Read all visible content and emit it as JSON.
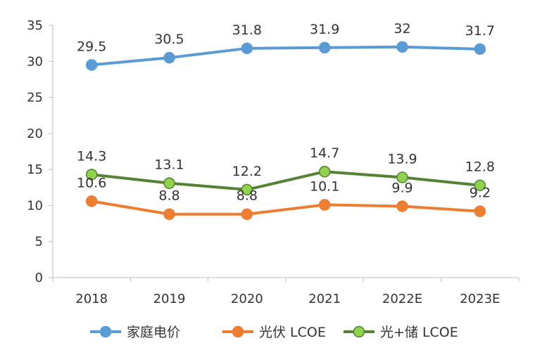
{
  "chart_data": {
    "type": "line",
    "categories": [
      "2018",
      "2019",
      "2020",
      "2021",
      "2022E",
      "2023E"
    ],
    "ylim": [
      0,
      35
    ],
    "yticks": [
      0,
      5,
      10,
      15,
      20,
      25,
      30,
      35
    ],
    "grid": false,
    "legend_position": "bottom",
    "series": [
      {
        "name": "家庭电价",
        "color": "#5b9bd5",
        "marker_fill": "#5b9bd5",
        "values": [
          29.5,
          30.5,
          31.8,
          31.9,
          32,
          31.7
        ],
        "labels": [
          "29.5",
          "30.5",
          "31.8",
          "31.9",
          "32",
          "31.7"
        ]
      },
      {
        "name": "光伏 LCOE",
        "color": "#ed7d31",
        "marker_fill": "#ed7d31",
        "values": [
          10.6,
          8.8,
          8.8,
          10.1,
          9.9,
          9.2
        ],
        "labels": [
          "10.6",
          "8.8",
          "8.8",
          "10.1",
          "9.9",
          "9.2"
        ]
      },
      {
        "name": "光+储 LCOE",
        "color": "#548235",
        "marker_fill": "#92d050",
        "values": [
          14.3,
          13.1,
          12.2,
          14.7,
          13.9,
          12.8
        ],
        "labels": [
          "14.3",
          "13.1",
          "12.2",
          "14.7",
          "13.9",
          "12.8"
        ]
      }
    ]
  }
}
